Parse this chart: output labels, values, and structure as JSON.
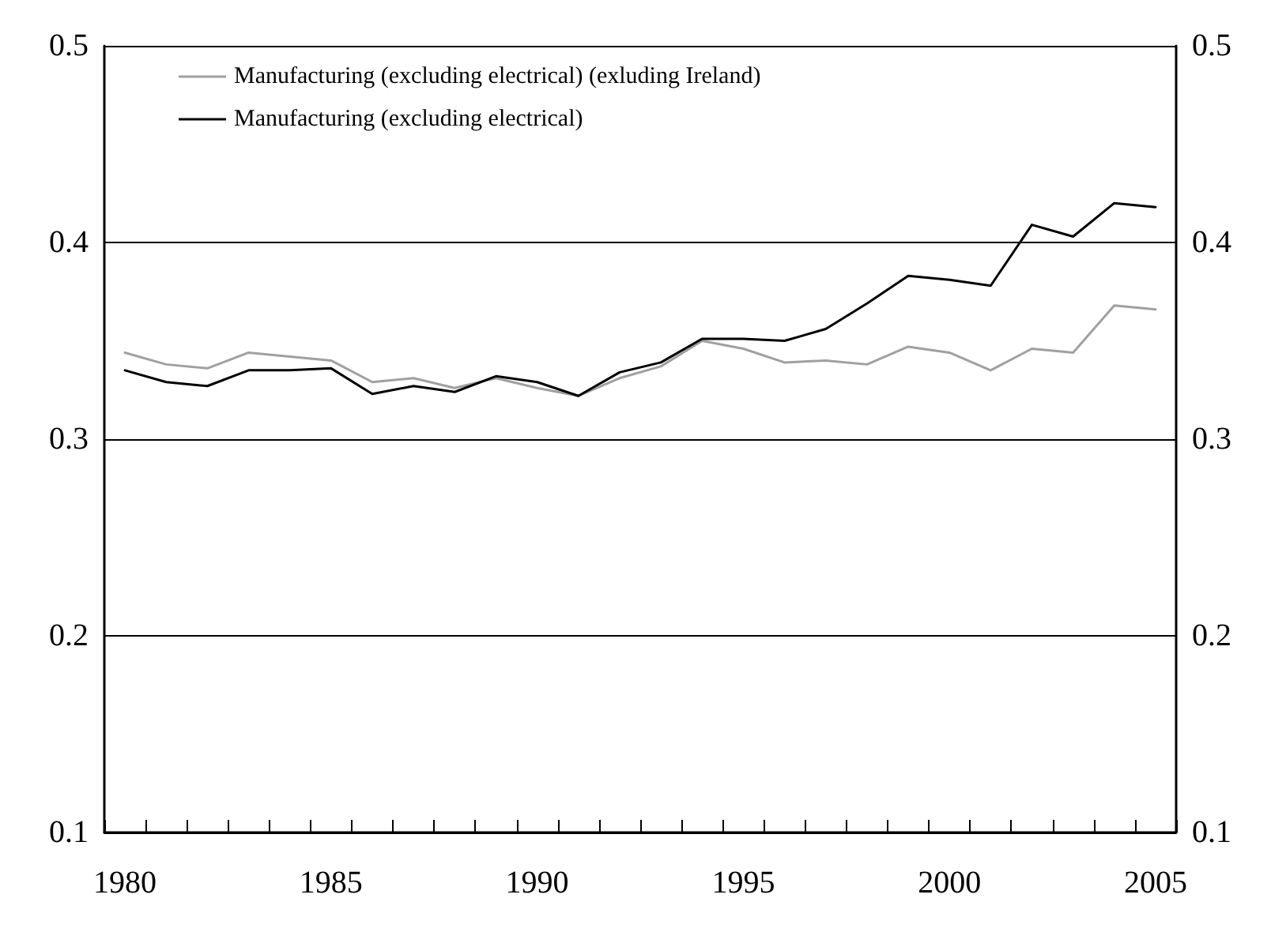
{
  "chart_data": {
    "type": "line",
    "categories": [
      "1980",
      null,
      null,
      null,
      null,
      "1985",
      null,
      null,
      null,
      null,
      "1990",
      null,
      null,
      null,
      null,
      "1995",
      null,
      null,
      null,
      null,
      "2000",
      null,
      null,
      null,
      null,
      "2005"
    ],
    "series": [
      {
        "name": "Manufacturing (excluding electrical) (exluding Ireland)",
        "color": "#a0a0a0",
        "values": [
          0.344,
          0.338,
          0.336,
          0.344,
          0.342,
          0.34,
          0.329,
          0.331,
          0.326,
          0.331,
          0.326,
          0.322,
          0.331,
          0.337,
          0.35,
          0.346,
          0.339,
          0.34,
          0.338,
          0.347,
          0.344,
          0.335,
          0.346,
          0.344,
          0.368,
          0.366
        ]
      },
      {
        "name": "Manufacturing (excluding electrical)",
        "color": "#000000",
        "values": [
          0.335,
          0.329,
          0.327,
          0.335,
          0.335,
          0.336,
          0.323,
          0.327,
          0.324,
          0.332,
          0.329,
          0.322,
          0.334,
          0.339,
          0.351,
          0.351,
          0.35,
          0.356,
          0.369,
          0.383,
          0.381,
          0.378,
          0.409,
          0.403,
          0.42,
          0.418
        ]
      }
    ],
    "ylim": [
      0.1,
      0.5
    ],
    "yticks": [
      0.1,
      0.2,
      0.3,
      0.4,
      0.5
    ],
    "y2lim": [
      0.1,
      0.5
    ],
    "y2ticks": [
      0.1,
      0.2,
      0.3,
      0.4,
      0.5
    ],
    "grid": "y",
    "legend": "top left",
    "marker": "none",
    "line_style": "solid"
  }
}
